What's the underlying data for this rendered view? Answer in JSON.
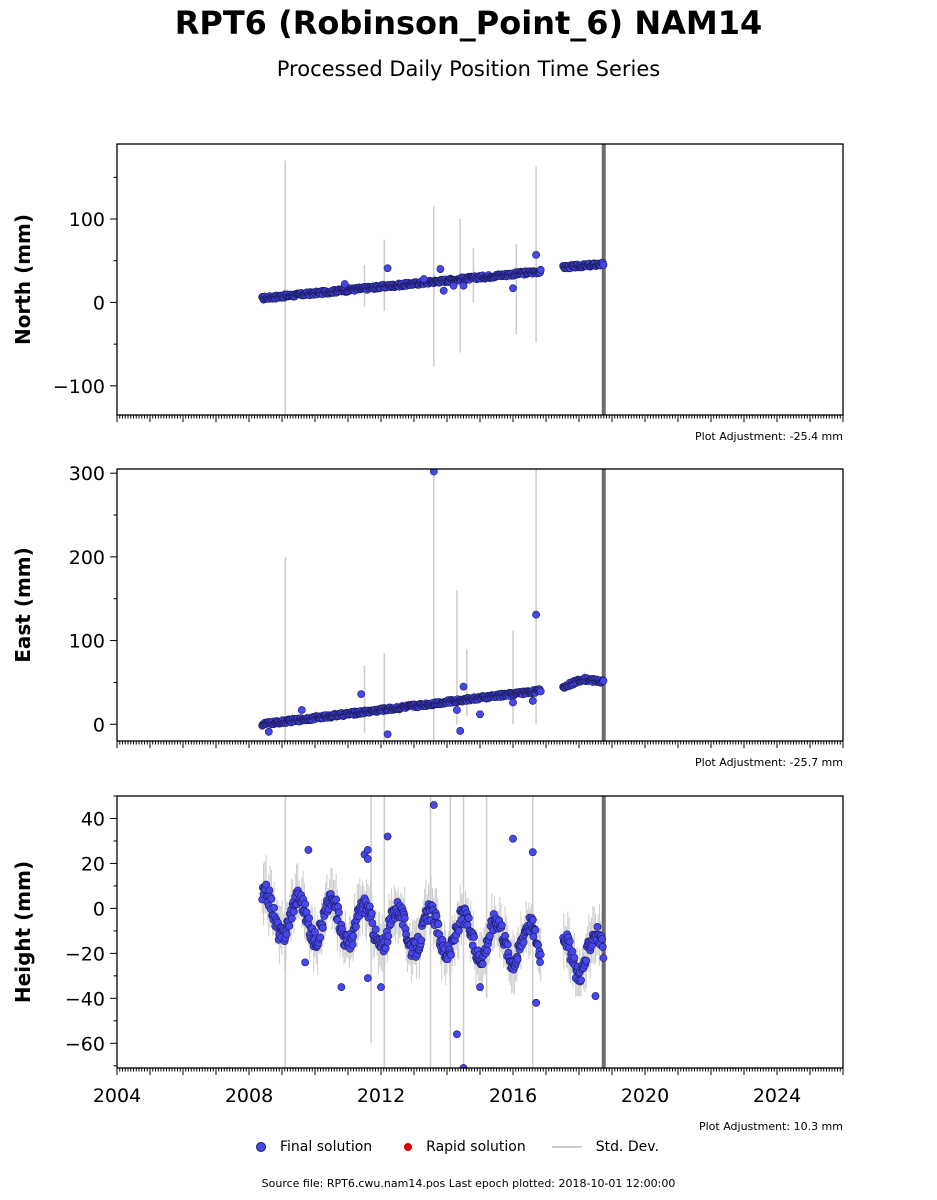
{
  "header": {
    "title": "RPT6 (Robinson_Point_6) NAM14",
    "subtitle": "Processed Daily Position Time Series"
  },
  "legend": {
    "final": "Final solution",
    "rapid": "Rapid solution",
    "std": "Std. Dev."
  },
  "footer": {
    "text": "Source file: RPT6.cwu.nam14.pos  Last epoch plotted: 2018-10-01 12:00:00"
  },
  "colors": {
    "final": "#4747ee",
    "final_edge": "#1a1a5a",
    "rapid": "#dd0000",
    "std_dev": "#cccccc",
    "vline": "#555555"
  },
  "chart_data": [
    {
      "type": "scatter",
      "ylabel": "North (mm)",
      "xlim": [
        2004,
        2026
      ],
      "ylim": [
        -135,
        190
      ],
      "yticks": [
        -100,
        0,
        100
      ],
      "ytick_labels": [
        "−100",
        "0",
        "100"
      ],
      "xticks": [
        2004,
        2008,
        2012,
        2016,
        2020,
        2024
      ],
      "show_xtick_labels": false,
      "adjustment": "Plot Adjustment: -25.4 mm",
      "vline_x": 2018.75,
      "trend": {
        "x": [
          2008.4,
          2016.8,
          2017.5,
          2018.75
        ],
        "y": [
          5,
          37,
          42,
          46
        ]
      },
      "noise": 2,
      "gap": [
        2016.85,
        2017.5
      ],
      "outliers": [
        {
          "x": 2010.9,
          "y": 22
        },
        {
          "x": 2012.2,
          "y": 41
        },
        {
          "x": 2013.3,
          "y": 28
        },
        {
          "x": 2013.8,
          "y": 40
        },
        {
          "x": 2013.9,
          "y": 14
        },
        {
          "x": 2014.2,
          "y": 20
        },
        {
          "x": 2014.5,
          "y": 20
        },
        {
          "x": 2016.0,
          "y": 17
        },
        {
          "x": 2016.7,
          "y": 57
        }
      ],
      "std_bars": [
        {
          "x": 2009.1,
          "y0": -135,
          "y1": 170
        },
        {
          "x": 2011.5,
          "y0": -5,
          "y1": 45
        },
        {
          "x": 2012.1,
          "y0": -10,
          "y1": 75
        },
        {
          "x": 2013.6,
          "y0": -77,
          "y1": 115
        },
        {
          "x": 2014.4,
          "y0": -60,
          "y1": 100
        },
        {
          "x": 2014.8,
          "y0": 0,
          "y1": 65
        },
        {
          "x": 2016.1,
          "y0": -38,
          "y1": 70
        },
        {
          "x": 2016.7,
          "y0": -48,
          "y1": 163
        }
      ]
    },
    {
      "type": "scatter",
      "ylabel": "East (mm)",
      "xlim": [
        2004,
        2026
      ],
      "ylim": [
        -20,
        305
      ],
      "yticks": [
        0,
        100,
        200,
        300
      ],
      "ytick_labels": [
        "0",
        "100",
        "200",
        "300"
      ],
      "xticks": [
        2004,
        2008,
        2012,
        2016,
        2020,
        2024
      ],
      "show_xtick_labels": false,
      "adjustment": "Plot Adjustment: -25.7 mm",
      "vline_x": 2018.75,
      "trend": {
        "x": [
          2008.4,
          2016.8,
          2017.5,
          2018.1,
          2018.75
        ],
        "y": [
          0,
          40,
          44,
          54,
          51
        ]
      },
      "noise": 2,
      "gap": [
        2016.85,
        2017.5
      ],
      "outliers": [
        {
          "x": 2008.6,
          "y": -9
        },
        {
          "x": 2009.6,
          "y": 17
        },
        {
          "x": 2011.4,
          "y": 36
        },
        {
          "x": 2012.2,
          "y": -12
        },
        {
          "x": 2013.6,
          "y": 302
        },
        {
          "x": 2014.4,
          "y": -8
        },
        {
          "x": 2014.5,
          "y": 45
        },
        {
          "x": 2014.3,
          "y": 17
        },
        {
          "x": 2015.0,
          "y": 12
        },
        {
          "x": 2016.0,
          "y": 26
        },
        {
          "x": 2016.6,
          "y": 28
        },
        {
          "x": 2016.7,
          "y": 131
        }
      ],
      "std_bars": [
        {
          "x": 2009.1,
          "y0": -20,
          "y1": 200
        },
        {
          "x": 2011.5,
          "y0": -10,
          "y1": 70
        },
        {
          "x": 2012.1,
          "y0": -20,
          "y1": 85
        },
        {
          "x": 2013.6,
          "y0": -20,
          "y1": 305
        },
        {
          "x": 2014.3,
          "y0": 0,
          "y1": 160
        },
        {
          "x": 2014.6,
          "y0": 10,
          "y1": 90
        },
        {
          "x": 2016.0,
          "y0": 0,
          "y1": 112
        },
        {
          "x": 2016.7,
          "y0": 0,
          "y1": 305
        }
      ]
    },
    {
      "type": "scatter",
      "ylabel": "Height (mm)",
      "xlim": [
        2004,
        2026
      ],
      "ylim": [
        -71,
        50
      ],
      "yticks": [
        -60,
        -40,
        -20,
        0,
        20,
        40
      ],
      "ytick_labels": [
        "−60",
        "−40",
        "−20",
        "0",
        "20",
        "40"
      ],
      "xticks": [
        2004,
        2008,
        2012,
        2016,
        2020,
        2024
      ],
      "xtick_labels": [
        "2004",
        "2008",
        "2012",
        "2016",
        "2020",
        "2024"
      ],
      "show_xtick_labels": true,
      "adjustment": "Plot Adjustment: 10.3 mm",
      "vline_x": 2018.75,
      "trend": {
        "x": [
          2008.4,
          2016.8,
          2017.5,
          2018.75
        ],
        "y": [
          -2,
          -16,
          -20,
          -20
        ]
      },
      "seasonal_amplitude": 9,
      "noise": 4,
      "gap": [
        2016.85,
        2017.5
      ],
      "outliers": [
        {
          "x": 2009.8,
          "y": 26
        },
        {
          "x": 2009.7,
          "y": -24
        },
        {
          "x": 2010.8,
          "y": -35
        },
        {
          "x": 2011.5,
          "y": 24
        },
        {
          "x": 2011.6,
          "y": 26
        },
        {
          "x": 2011.6,
          "y": 22
        },
        {
          "x": 2011.6,
          "y": -31
        },
        {
          "x": 2012.0,
          "y": -35
        },
        {
          "x": 2012.2,
          "y": 32
        },
        {
          "x": 2013.6,
          "y": 46
        },
        {
          "x": 2014.3,
          "y": -56
        },
        {
          "x": 2014.5,
          "y": -71
        },
        {
          "x": 2015.0,
          "y": -35
        },
        {
          "x": 2016.0,
          "y": 31
        },
        {
          "x": 2016.6,
          "y": 25
        },
        {
          "x": 2016.7,
          "y": -42
        },
        {
          "x": 2018.5,
          "y": -39
        }
      ],
      "std_bars": [
        {
          "x": 2009.1,
          "y0": -71,
          "y1": 50
        },
        {
          "x": 2011.7,
          "y0": -60,
          "y1": 50
        },
        {
          "x": 2012.1,
          "y0": -71,
          "y1": 50
        },
        {
          "x": 2013.5,
          "y0": -71,
          "y1": 50
        },
        {
          "x": 2014.1,
          "y0": -71,
          "y1": 50
        },
        {
          "x": 2014.5,
          "y0": -71,
          "y1": 50
        },
        {
          "x": 2015.2,
          "y0": -40,
          "y1": 50
        },
        {
          "x": 2016.6,
          "y0": -71,
          "y1": 50
        }
      ]
    }
  ]
}
